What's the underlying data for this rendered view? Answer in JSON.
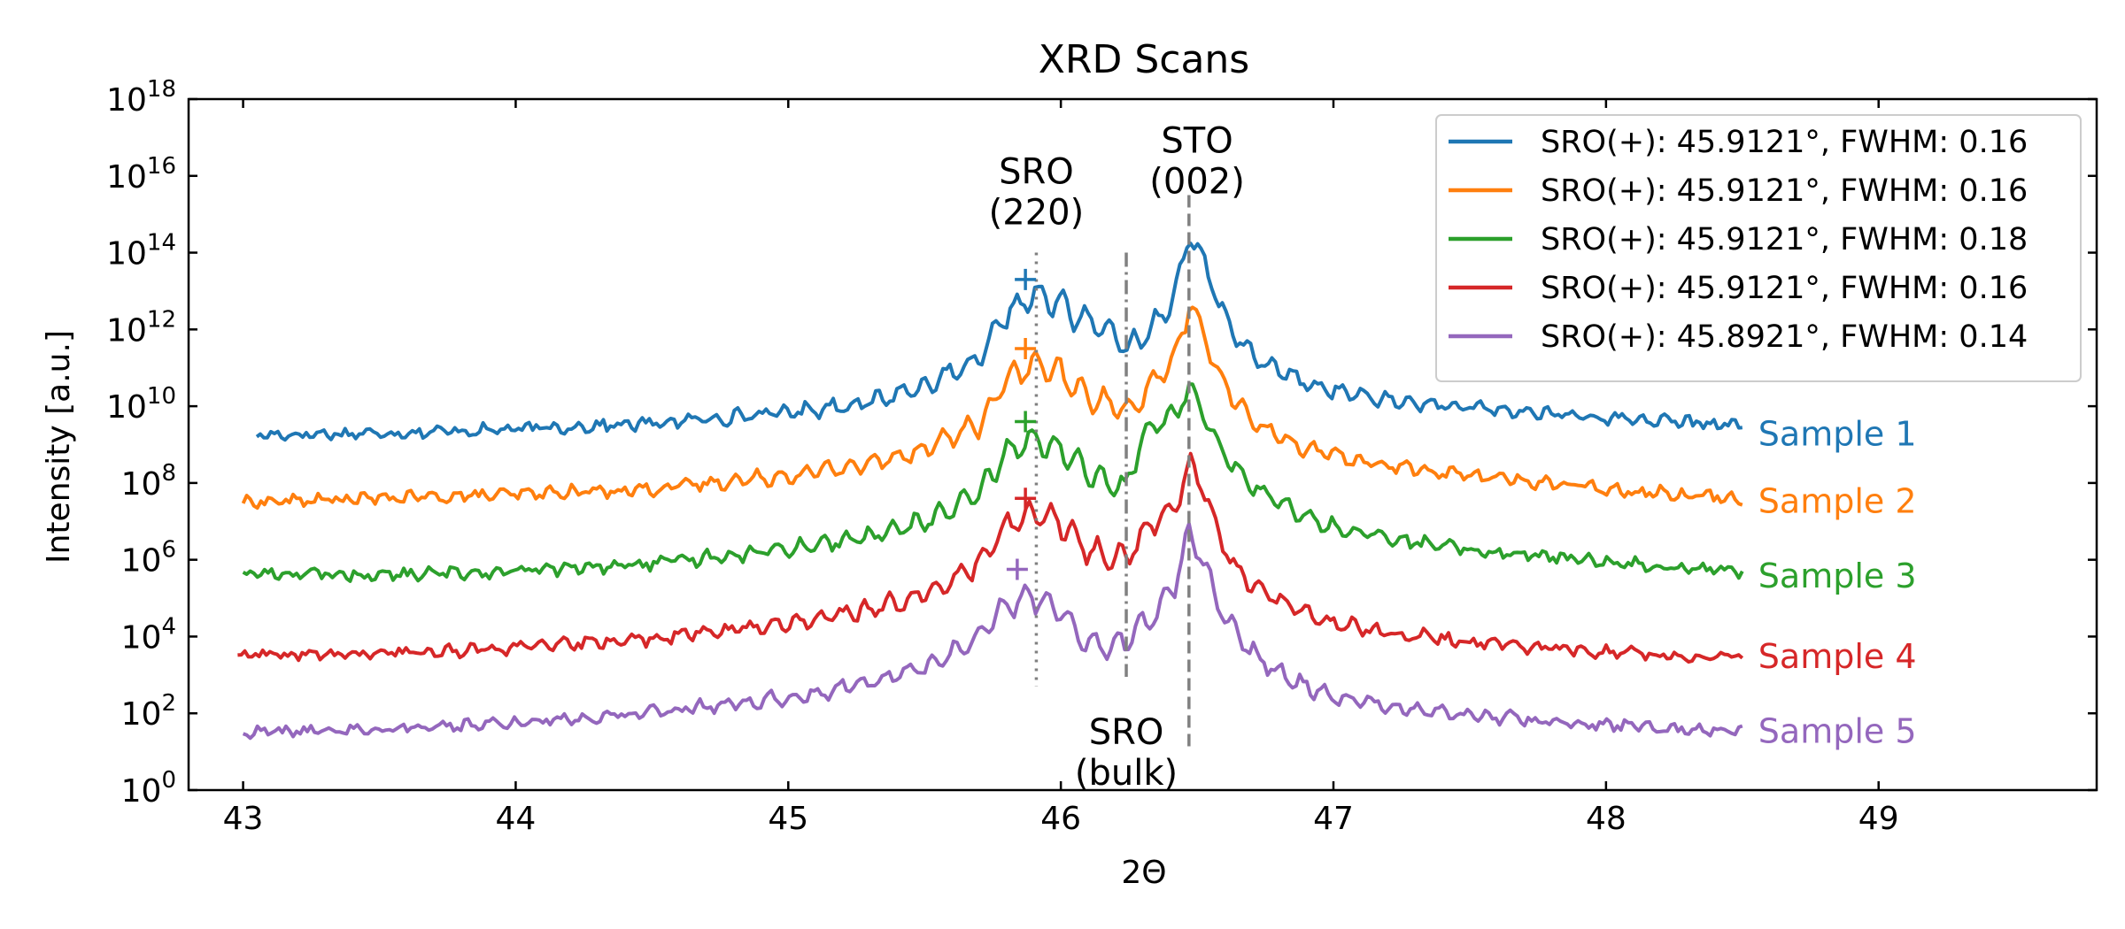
{
  "chart_data": {
    "type": "line",
    "title": "XRD Scans",
    "xlabel": "2Θ",
    "ylabel": "Intensity [a.u.]",
    "xlim": [
      42.8,
      49.8
    ],
    "x_ticks": [
      43,
      44,
      45,
      46,
      47,
      48,
      49
    ],
    "y_scale": "log10",
    "ylim_log10": [
      0,
      18
    ],
    "y_ticks_log10": [
      0,
      2,
      4,
      6,
      8,
      10,
      12,
      14,
      16,
      18
    ],
    "y_tick_base": "10",
    "grid": false,
    "legend_position": "top-right",
    "series": [
      {
        "name": "Sample 1",
        "legend": "SRO(+): 45.9121°, FWHM: 0.16",
        "color": "#1f77b4",
        "x_range": [
          43.05,
          48.5
        ],
        "baseline_log10": 9.3,
        "marker": {
          "x": 45.87,
          "log10": 13.3
        },
        "points": [
          [
            43.05,
            9.25
          ],
          [
            43.5,
            9.3
          ],
          [
            44.0,
            9.4
          ],
          [
            44.5,
            9.55
          ],
          [
            45.0,
            9.85
          ],
          [
            45.3,
            10.1
          ],
          [
            45.5,
            10.55
          ],
          [
            45.62,
            10.9
          ],
          [
            45.7,
            11.2
          ],
          [
            45.8,
            12.4
          ],
          [
            45.9,
            12.9
          ],
          [
            46.0,
            12.65
          ],
          [
            46.06,
            12.35
          ],
          [
            46.12,
            12.15
          ],
          [
            46.18,
            11.95
          ],
          [
            46.24,
            11.5
          ],
          [
            46.3,
            11.8
          ],
          [
            46.36,
            12.3
          ],
          [
            46.42,
            12.9
          ],
          [
            46.47,
            14.5
          ],
          [
            46.52,
            13.9
          ],
          [
            46.58,
            12.6
          ],
          [
            46.65,
            11.7
          ],
          [
            46.75,
            11.1
          ],
          [
            46.9,
            10.6
          ],
          [
            47.0,
            10.4
          ],
          [
            47.2,
            10.15
          ],
          [
            47.5,
            9.95
          ],
          [
            48.0,
            9.7
          ],
          [
            48.5,
            9.5
          ]
        ]
      },
      {
        "name": "Sample 2",
        "legend": "SRO(+): 45.9121°, FWHM: 0.16",
        "color": "#ff7f0e",
        "x_range": [
          43.0,
          48.5
        ],
        "baseline_log10": 7.55,
        "marker": {
          "x": 45.87,
          "log10": 11.5
        },
        "points": [
          [
            43.0,
            7.5
          ],
          [
            43.5,
            7.6
          ],
          [
            44.0,
            7.7
          ],
          [
            44.5,
            7.85
          ],
          [
            45.0,
            8.2
          ],
          [
            45.3,
            8.5
          ],
          [
            45.5,
            8.9
          ],
          [
            45.62,
            9.3
          ],
          [
            45.7,
            9.5
          ],
          [
            45.8,
            10.7
          ],
          [
            45.9,
            11.1
          ],
          [
            46.0,
            10.8
          ],
          [
            46.06,
            10.45
          ],
          [
            46.12,
            10.2
          ],
          [
            46.18,
            10.05
          ],
          [
            46.24,
            9.85
          ],
          [
            46.3,
            10.3
          ],
          [
            46.36,
            10.8
          ],
          [
            46.42,
            11.3
          ],
          [
            46.47,
            12.6
          ],
          [
            46.52,
            12.0
          ],
          [
            46.58,
            10.8
          ],
          [
            46.65,
            10.0
          ],
          [
            46.75,
            9.4
          ],
          [
            46.9,
            8.9
          ],
          [
            47.0,
            8.7
          ],
          [
            47.2,
            8.45
          ],
          [
            47.5,
            8.2
          ],
          [
            48.0,
            7.85
          ],
          [
            48.5,
            7.6
          ]
        ]
      },
      {
        "name": "Sample 3",
        "legend": "SRO(+): 45.9121°, FWHM: 0.18",
        "color": "#2ca02c",
        "x_range": [
          43.0,
          48.5
        ],
        "baseline_log10": 5.6,
        "marker": {
          "x": 45.87,
          "log10": 9.6
        },
        "points": [
          [
            43.0,
            5.65
          ],
          [
            43.5,
            5.6
          ],
          [
            44.0,
            5.7
          ],
          [
            44.5,
            5.9
          ],
          [
            45.0,
            6.3
          ],
          [
            45.3,
            6.6
          ],
          [
            45.5,
            7.0
          ],
          [
            45.62,
            7.4
          ],
          [
            45.7,
            7.7
          ],
          [
            45.8,
            8.8
          ],
          [
            45.9,
            9.15
          ],
          [
            46.0,
            8.85
          ],
          [
            46.06,
            8.45
          ],
          [
            46.12,
            8.15
          ],
          [
            46.18,
            8.0
          ],
          [
            46.24,
            7.85
          ],
          [
            46.3,
            9.3
          ],
          [
            46.36,
            9.6
          ],
          [
            46.42,
            9.75
          ],
          [
            46.47,
            10.55
          ],
          [
            46.52,
            9.9
          ],
          [
            46.58,
            9.0
          ],
          [
            46.65,
            8.3
          ],
          [
            46.75,
            7.7
          ],
          [
            46.9,
            7.1
          ],
          [
            47.0,
            6.85
          ],
          [
            47.2,
            6.55
          ],
          [
            47.5,
            6.25
          ],
          [
            48.0,
            5.95
          ],
          [
            48.5,
            5.7
          ]
        ]
      },
      {
        "name": "Sample 4",
        "legend": "SRO(+): 45.9121°, FWHM: 0.16",
        "color": "#d62728",
        "x_range": [
          42.98,
          48.5
        ],
        "baseline_log10": 3.5,
        "marker": {
          "x": 45.87,
          "log10": 7.6
        },
        "points": [
          [
            42.98,
            3.5
          ],
          [
            43.5,
            3.55
          ],
          [
            44.0,
            3.7
          ],
          [
            44.5,
            3.95
          ],
          [
            45.0,
            4.35
          ],
          [
            45.3,
            4.7
          ],
          [
            45.5,
            5.1
          ],
          [
            45.62,
            5.55
          ],
          [
            45.7,
            5.9
          ],
          [
            45.8,
            6.9
          ],
          [
            45.9,
            7.25
          ],
          [
            46.0,
            6.95
          ],
          [
            46.06,
            6.5
          ],
          [
            46.12,
            6.2
          ],
          [
            46.18,
            6.05
          ],
          [
            46.24,
            6.1
          ],
          [
            46.3,
            6.6
          ],
          [
            46.36,
            7.1
          ],
          [
            46.42,
            7.4
          ],
          [
            46.47,
            8.5
          ],
          [
            46.52,
            8.0
          ],
          [
            46.58,
            6.6
          ],
          [
            46.65,
            5.7
          ],
          [
            46.75,
            5.1
          ],
          [
            46.9,
            4.6
          ],
          [
            47.0,
            4.35
          ],
          [
            47.2,
            4.1
          ],
          [
            47.5,
            3.85
          ],
          [
            48.0,
            3.6
          ],
          [
            48.5,
            3.45
          ]
        ]
      },
      {
        "name": "Sample 5",
        "legend": "SRO(+): 45.8921°, FWHM: 0.14",
        "color": "#9467bd",
        "x_range": [
          43.0,
          48.5
        ],
        "baseline_log10": 1.55,
        "marker": {
          "x": 45.84,
          "log10": 5.75
        },
        "points": [
          [
            43.0,
            1.5
          ],
          [
            43.5,
            1.6
          ],
          [
            44.0,
            1.75
          ],
          [
            44.5,
            2.05
          ],
          [
            45.0,
            2.4
          ],
          [
            45.3,
            2.8
          ],
          [
            45.5,
            3.2
          ],
          [
            45.62,
            3.6
          ],
          [
            45.7,
            4.0
          ],
          [
            45.8,
            4.85
          ],
          [
            45.9,
            5.05
          ],
          [
            46.0,
            4.7
          ],
          [
            46.06,
            4.1
          ],
          [
            46.12,
            3.8
          ],
          [
            46.18,
            3.75
          ],
          [
            46.24,
            3.9
          ],
          [
            46.3,
            4.3
          ],
          [
            46.36,
            4.7
          ],
          [
            46.42,
            5.4
          ],
          [
            46.47,
            6.7
          ],
          [
            46.52,
            6.0
          ],
          [
            46.58,
            4.8
          ],
          [
            46.65,
            4.0
          ],
          [
            46.75,
            3.3
          ],
          [
            46.9,
            2.7
          ],
          [
            47.0,
            2.45
          ],
          [
            47.2,
            2.2
          ],
          [
            47.5,
            1.95
          ],
          [
            48.0,
            1.7
          ],
          [
            48.5,
            1.5
          ]
        ]
      }
    ],
    "reference_lines": [
      {
        "x": 45.91,
        "style": "dotted",
        "from_log10": 2.7,
        "to_log10": 14.0
      },
      {
        "x": 46.24,
        "style": "dashdot",
        "from_log10": 2.95,
        "to_log10": 14.0
      },
      {
        "x": 46.47,
        "style": "dashed",
        "from_log10": 1.0,
        "to_log10": 15.5
      }
    ],
    "annotations": [
      {
        "lines": [
          "SRO",
          "(220)"
        ],
        "x": 45.91,
        "log10": 15.8
      },
      {
        "lines": [
          "STO",
          "(002)"
        ],
        "x": 46.5,
        "log10": 16.6
      },
      {
        "lines": [
          "SRO",
          "(bulk)"
        ],
        "x": 46.24,
        "log10": 1.2
      }
    ]
  }
}
